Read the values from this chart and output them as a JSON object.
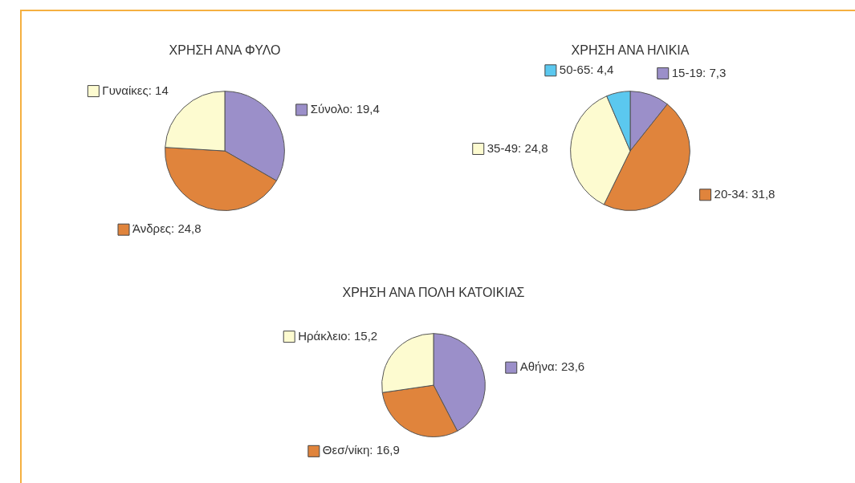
{
  "chart_data": [
    {
      "type": "pie",
      "title": "ΧΡΗΣΗ ΑΝΑ ΦΥΛΟ",
      "categories": [
        "Σύνολο",
        "Άνδρες",
        "Γυναίκες"
      ],
      "values": [
        19.4,
        24.8,
        14
      ],
      "value_labels": [
        "19,4",
        "24,8",
        "14"
      ],
      "colors": [
        "#9b8fc9",
        "#e0843c",
        "#fdfbd0"
      ],
      "legend": "right"
    },
    {
      "type": "pie",
      "title": "ΧΡΗΣΗ ΑΝΑ ΗΛΙΚΙΑ",
      "categories": [
        "15-19",
        "20-34",
        "35-49",
        "50-65"
      ],
      "values": [
        7.3,
        31.8,
        24.8,
        4.4
      ],
      "value_labels": [
        "7,3",
        "31,8",
        "24,8",
        "4,4"
      ],
      "colors": [
        "#9b8fc9",
        "#e0843c",
        "#fdfbd0",
        "#5bc8ef"
      ],
      "legend": "top left"
    },
    {
      "type": "pie",
      "title": "ΧΡΗΣΗ ΑΝΑ ΠΟΛΗ ΚΑΤΟΙΚΙΑΣ",
      "categories": [
        "Αθήνα",
        "Θεσ/νίκη",
        "Ηράκλειο"
      ],
      "values": [
        23.6,
        16.9,
        15.2
      ],
      "value_labels": [
        "23,6",
        "16,9",
        "15,2"
      ],
      "colors": [
        "#9b8fc9",
        "#e0843c",
        "#fdfbd0"
      ],
      "legend": "right"
    }
  ]
}
